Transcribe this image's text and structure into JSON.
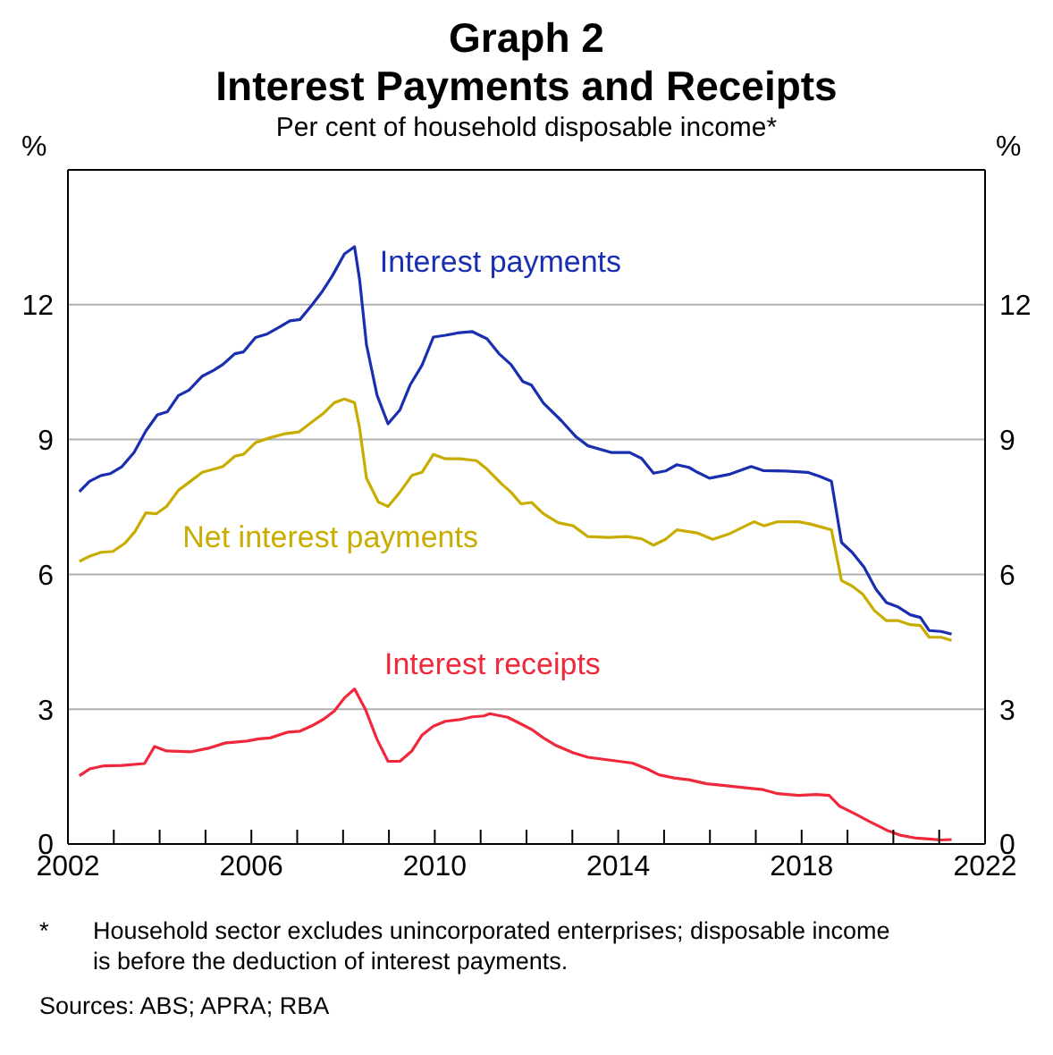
{
  "chart_data": {
    "type": "line",
    "title": "Graph 2\nInterest Payments and Receipts",
    "subtitle": "Per cent of household disposable income*",
    "ylabel": "%",
    "y2label": "%",
    "xlim": [
      2002,
      2022
    ],
    "xticks": [
      2002,
      {
        "value": 2003,
        "label": null
      },
      {
        "value": 2004,
        "label": null
      },
      {
        "value": 2005,
        "label": null
      },
      2006,
      {
        "value": 2007,
        "label": null
      },
      {
        "value": 2008,
        "label": null
      },
      {
        "value": 2009,
        "label": null
      },
      2010,
      {
        "value": 2011,
        "label": null
      },
      {
        "value": 2012,
        "label": null
      },
      {
        "value": 2013,
        "label": null
      },
      2014,
      {
        "value": 2015,
        "label": null
      },
      {
        "value": 2016,
        "label": null
      },
      {
        "value": 2017,
        "label": null
      },
      2018,
      {
        "value": 2019,
        "label": null
      },
      {
        "value": 2020,
        "label": null
      },
      {
        "value": 2021,
        "label": null
      },
      2022
    ],
    "ylim": [
      0,
      15
    ],
    "yticks": [
      0,
      3,
      6,
      9,
      12
    ],
    "y2lim": [
      0,
      15
    ],
    "y2ticks": [
      0,
      3,
      6,
      9,
      12
    ],
    "grid": "y",
    "legend": false,
    "marker": "none",
    "line_style": "solid",
    "series": [
      {
        "name": "Interest payments",
        "color": "#1a2fb0",
        "x": [
          2002.25,
          2002.47,
          2002.72,
          2002.92,
          2003.18,
          2003.44,
          2003.7,
          2003.95,
          2004.17,
          2004.41,
          2004.64,
          2004.93,
          2005.18,
          2005.38,
          2005.64,
          2005.83,
          2006.09,
          2006.35,
          2006.61,
          2006.84,
          2007.06,
          2007.32,
          2007.55,
          2007.77,
          2008.03,
          2008.25,
          2008.36,
          2008.51,
          2008.74,
          2008.98,
          2009.24,
          2009.46,
          2009.72,
          2009.97,
          2010.23,
          2010.49,
          2010.82,
          2011.14,
          2011.4,
          2011.66,
          2011.92,
          2012.11,
          2012.37,
          2012.76,
          2013.08,
          2013.34,
          2013.86,
          2014.25,
          2014.51,
          2014.77,
          2015.03,
          2015.28,
          2015.54,
          2015.73,
          2015.99,
          2016.44,
          2016.9,
          2017.16,
          2017.67,
          2018.13,
          2018.39,
          2018.65,
          2018.87,
          2019.1,
          2019.36,
          2019.62,
          2019.85,
          2020.11,
          2020.37,
          2020.59,
          2020.78,
          2021.04,
          2021.27
        ],
        "values": [
          7.84,
          8.07,
          8.2,
          8.24,
          8.4,
          8.71,
          9.19,
          9.55,
          9.62,
          9.98,
          10.1,
          10.41,
          10.54,
          10.67,
          10.91,
          10.95,
          11.27,
          11.35,
          11.5,
          11.64,
          11.67,
          11.99,
          12.3,
          12.65,
          13.13,
          13.29,
          12.56,
          11.11,
          9.99,
          9.35,
          9.66,
          10.21,
          10.65,
          11.28,
          11.32,
          11.37,
          11.4,
          11.24,
          10.91,
          10.67,
          10.29,
          10.21,
          9.81,
          9.42,
          9.06,
          8.86,
          8.71,
          8.71,
          8.58,
          8.25,
          8.3,
          8.44,
          8.38,
          8.27,
          8.14,
          8.23,
          8.4,
          8.31,
          8.3,
          8.27,
          8.18,
          8.07,
          6.71,
          6.49,
          6.16,
          5.67,
          5.37,
          5.27,
          5.1,
          5.04,
          4.75,
          4.73,
          4.67
        ]
      },
      {
        "name": "Net interest payments",
        "color": "#c8ac00",
        "x": [
          2002.25,
          2002.47,
          2002.72,
          2002.98,
          2003.24,
          2003.46,
          2003.7,
          2003.93,
          2004.15,
          2004.41,
          2004.67,
          2004.93,
          2005.18,
          2005.38,
          2005.64,
          2005.83,
          2006.09,
          2006.41,
          2006.74,
          2007.04,
          2007.32,
          2007.58,
          2007.81,
          2008.03,
          2008.25,
          2008.36,
          2008.51,
          2008.77,
          2008.98,
          2009.24,
          2009.5,
          2009.72,
          2009.97,
          2010.23,
          2010.56,
          2010.91,
          2011.14,
          2011.46,
          2011.66,
          2011.88,
          2012.11,
          2012.37,
          2012.69,
          2013.02,
          2013.34,
          2013.79,
          2014.18,
          2014.51,
          2014.77,
          2015.03,
          2015.28,
          2015.73,
          2016.06,
          2016.44,
          2016.96,
          2017.18,
          2017.48,
          2017.93,
          2018.19,
          2018.65,
          2018.87,
          2019.1,
          2019.33,
          2019.59,
          2019.85,
          2020.11,
          2020.37,
          2020.59,
          2020.78,
          2021.04,
          2021.27
        ],
        "values": [
          6.29,
          6.4,
          6.49,
          6.51,
          6.69,
          6.95,
          7.37,
          7.35,
          7.51,
          7.87,
          8.07,
          8.27,
          8.34,
          8.4,
          8.63,
          8.67,
          8.93,
          9.04,
          9.13,
          9.17,
          9.39,
          9.59,
          9.82,
          9.9,
          9.82,
          9.26,
          8.14,
          7.61,
          7.51,
          7.83,
          8.2,
          8.27,
          8.67,
          8.57,
          8.57,
          8.53,
          8.34,
          8.01,
          7.83,
          7.57,
          7.6,
          7.35,
          7.15,
          7.08,
          6.84,
          6.82,
          6.84,
          6.79,
          6.65,
          6.78,
          6.99,
          6.92,
          6.78,
          6.91,
          7.17,
          7.08,
          7.17,
          7.17,
          7.12,
          6.99,
          5.86,
          5.74,
          5.56,
          5.19,
          4.97,
          4.97,
          4.88,
          4.86,
          4.6,
          4.6,
          4.53
        ]
      },
      {
        "name": "Interest receipts",
        "color": "#f0283c",
        "x": [
          2002.25,
          2002.47,
          2002.79,
          2003.18,
          2003.67,
          2003.89,
          2004.15,
          2004.67,
          2005.06,
          2005.44,
          2005.9,
          2006.16,
          2006.41,
          2006.8,
          2007.06,
          2007.32,
          2007.58,
          2007.81,
          2008.03,
          2008.25,
          2008.49,
          2008.74,
          2008.98,
          2009.24,
          2009.5,
          2009.72,
          2009.97,
          2010.23,
          2010.56,
          2010.82,
          2011.07,
          2011.2,
          2011.59,
          2011.9,
          2012.11,
          2012.37,
          2012.63,
          2013.02,
          2013.34,
          2013.79,
          2014.31,
          2014.63,
          2014.89,
          2015.22,
          2015.54,
          2015.93,
          2016.32,
          2016.77,
          2017.16,
          2017.48,
          2017.93,
          2018.32,
          2018.6,
          2018.83,
          2019.15,
          2019.46,
          2019.85,
          2020.17,
          2020.5,
          2020.78,
          2021.04,
          2021.27
        ],
        "values": [
          1.52,
          1.67,
          1.74,
          1.75,
          1.79,
          2.17,
          2.07,
          2.05,
          2.13,
          2.25,
          2.29,
          2.34,
          2.36,
          2.49,
          2.51,
          2.63,
          2.78,
          2.96,
          3.25,
          3.45,
          2.99,
          2.33,
          1.84,
          1.84,
          2.07,
          2.42,
          2.62,
          2.73,
          2.77,
          2.83,
          2.85,
          2.9,
          2.82,
          2.66,
          2.55,
          2.36,
          2.2,
          2.03,
          1.93,
          1.87,
          1.8,
          1.67,
          1.54,
          1.47,
          1.43,
          1.34,
          1.3,
          1.25,
          1.21,
          1.12,
          1.08,
          1.1,
          1.08,
          0.84,
          0.68,
          0.51,
          0.31,
          0.19,
          0.13,
          0.11,
          0.09,
          0.1
        ]
      }
    ],
    "annotations": [
      "*\tHousehold sector excludes unincorporated enterprises; disposable income is before the deduction of interest payments.",
      "Sources: ABS; APRA; RBA"
    ]
  }
}
